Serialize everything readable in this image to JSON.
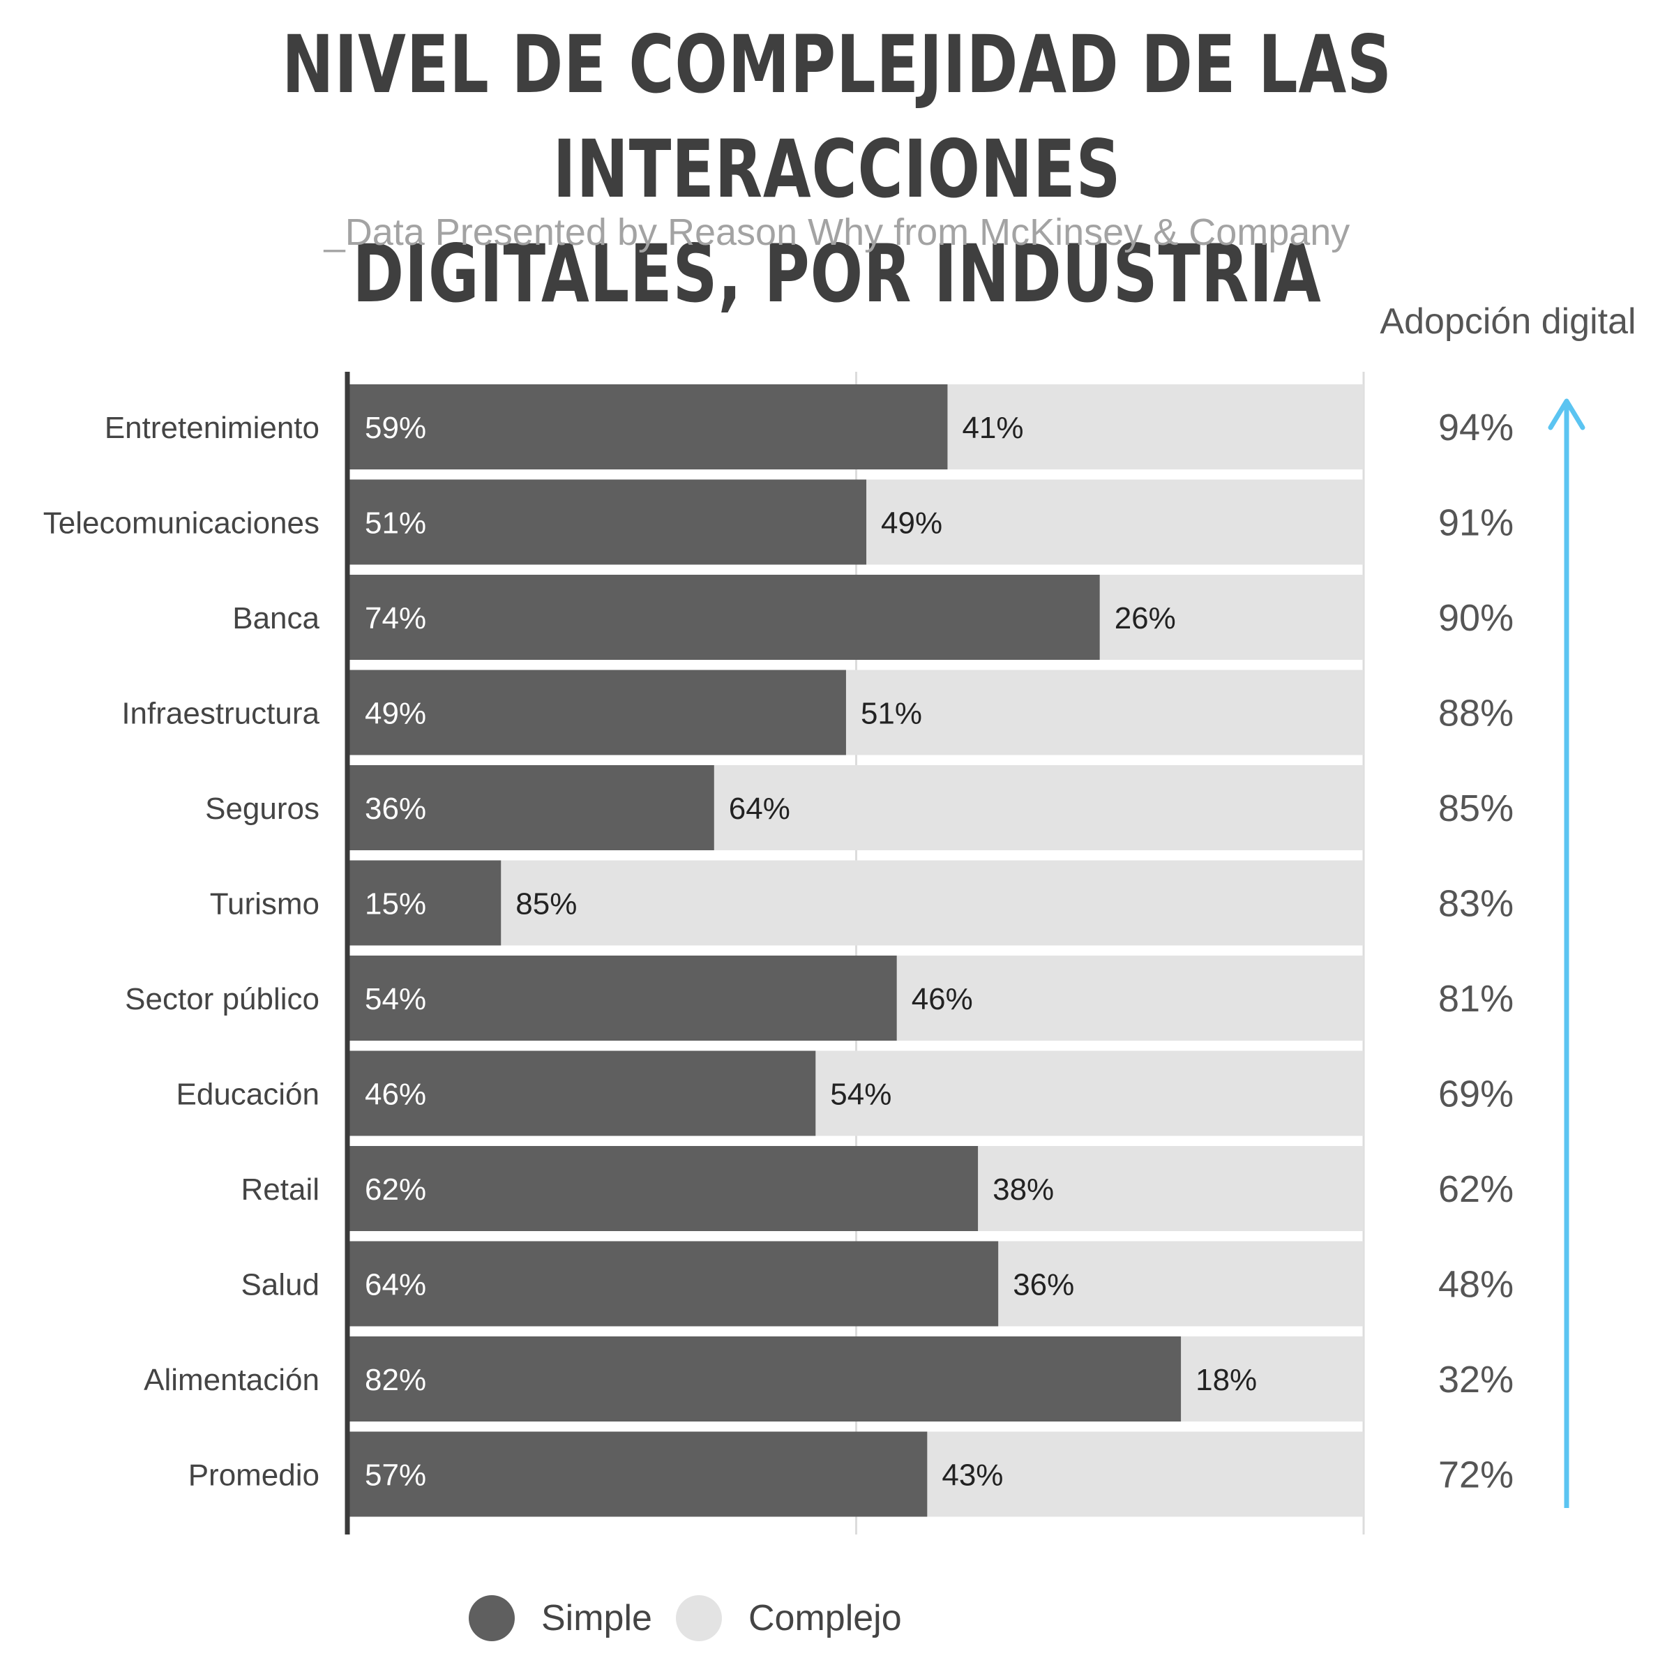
{
  "title_line1": "NIVEL DE COMPLEJIDAD DE LAS INTERACCIONES",
  "title_line2": "DIGITALES, POR INDUSTRIA",
  "subtitle": "_Data Presented by Reason Why from McKinsey & Company",
  "adoption_header": "Adopción digital",
  "colors": {
    "simple": "#5f5f5f",
    "complex": "#e3e3e3",
    "title": "#3f3f3f",
    "subtitle": "#a3a3a3",
    "arrow": "#5bc4f1",
    "axis": "#3a3a3a",
    "grid": "#dcdcdc"
  },
  "chart_data": {
    "type": "bar",
    "orientation": "horizontal",
    "stacked": true,
    "categories": [
      "Entretenimiento",
      "Telecomunicaciones",
      "Banca",
      "Infraestructura",
      "Seguros",
      "Turismo",
      "Sector público",
      "Educación",
      "Retail",
      "Salud",
      "Alimentación",
      "Promedio"
    ],
    "series": [
      {
        "name": "Simple",
        "values": [
          59,
          51,
          74,
          49,
          36,
          15,
          54,
          46,
          62,
          64,
          82,
          57
        ]
      },
      {
        "name": "Complejo",
        "values": [
          41,
          49,
          26,
          51,
          64,
          85,
          46,
          54,
          38,
          36,
          18,
          43
        ]
      }
    ],
    "value_labels_simple": [
      "59%",
      "51%",
      "74%",
      "49%",
      "36%",
      "15%",
      "54%",
      "46%",
      "62%",
      "64%",
      "82%",
      "57%"
    ],
    "value_labels_complex": [
      "41%",
      "49%",
      "26%",
      "51%",
      "64%",
      "85%",
      "46%",
      "54%",
      "38%",
      "36%",
      "18%",
      "43%"
    ],
    "adoption_digital": [
      "94%",
      "91%",
      "90%",
      "88%",
      "85%",
      "83%",
      "81%",
      "69%",
      "62%",
      "48%",
      "32%",
      "72%"
    ],
    "xlim": [
      0,
      100
    ],
    "grid": true,
    "legend": "bottom",
    "legend_entries": [
      "Simple",
      "Complejo"
    ]
  }
}
